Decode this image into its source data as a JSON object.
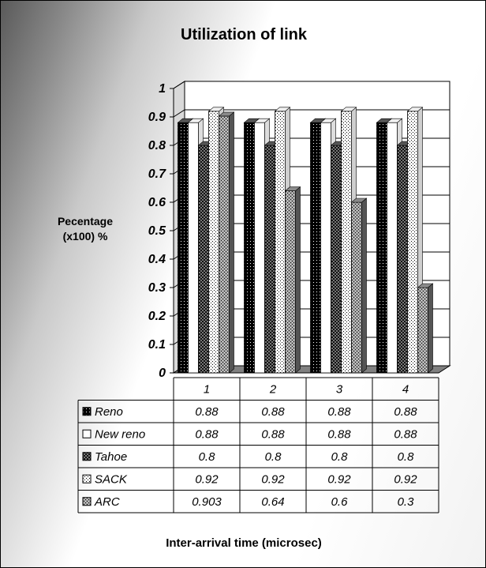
{
  "chart_data": {
    "type": "bar",
    "title": "Utilization of link",
    "ylabel_lines": [
      "Pecentage",
      "(x100) %"
    ],
    "xlabel": "Inter-arrival time (microsec)",
    "categories": [
      "1",
      "2",
      "3",
      "4"
    ],
    "ylim": [
      0,
      1
    ],
    "yticks": [
      "0",
      "0.1",
      "0.2",
      "0.3",
      "0.4",
      "0.5",
      "0.6",
      "0.7",
      "0.8",
      "0.9",
      "1"
    ],
    "grid": true,
    "legend": "data table below chart",
    "series": [
      {
        "name": "Reno",
        "values": [
          0.88,
          0.88,
          0.88,
          0.88
        ],
        "labels": [
          "0.88",
          "0.88",
          "0.88",
          "0.88"
        ],
        "pattern": "dark-dots"
      },
      {
        "name": "New reno",
        "values": [
          0.88,
          0.88,
          0.88,
          0.88
        ],
        "labels": [
          "0.88",
          "0.88",
          "0.88",
          "0.88"
        ],
        "pattern": "white"
      },
      {
        "name": "Tahoe",
        "values": [
          0.8,
          0.8,
          0.8,
          0.8
        ],
        "labels": [
          "0.8",
          "0.8",
          "0.8",
          "0.8"
        ],
        "pattern": "dark-checker"
      },
      {
        "name": "SACK",
        "values": [
          0.92,
          0.92,
          0.92,
          0.92
        ],
        "labels": [
          "0.92",
          "0.92",
          "0.92",
          "0.92"
        ],
        "pattern": "light-dots"
      },
      {
        "name": "ARC",
        "values": [
          0.903,
          0.64,
          0.6,
          0.3
        ],
        "labels": [
          "0.903",
          "0.64",
          "0.6",
          "0.3"
        ],
        "pattern": "cross-hatch"
      }
    ]
  }
}
